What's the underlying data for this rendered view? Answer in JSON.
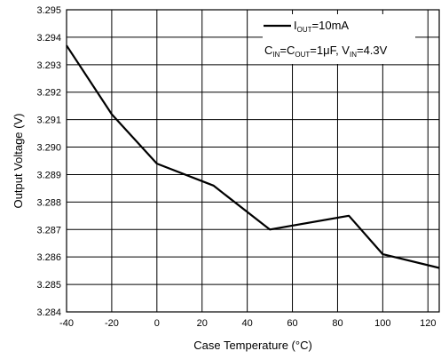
{
  "chart_data": {
    "type": "line",
    "xlabel": "Case Temperature (°C)",
    "ylabel": "Output Voltage (V)",
    "xlim": [
      -40,
      125
    ],
    "ylim": [
      3.284,
      3.295
    ],
    "x_ticks": [
      "-40",
      "-20",
      "0",
      "20",
      "40",
      "60",
      "80",
      "100",
      "120"
    ],
    "y_ticks": [
      "3.284",
      "3.285",
      "3.286",
      "3.287",
      "3.288",
      "3.289",
      "3.290",
      "3.291",
      "3.292",
      "3.293",
      "3.294",
      "3.295"
    ],
    "grid": true,
    "legend_position": "top-right",
    "legend": {
      "line1": {
        "prefix": "I",
        "sub": "OUT",
        "suffix": "=10mA"
      },
      "line2": {
        "c1": "C",
        "c1_sub": "IN",
        "eq1": "=C",
        "c2_sub": "OUT",
        "mid": "=1μF, V",
        "v_sub": "IN",
        "end": "=4.3V"
      }
    },
    "series": [
      {
        "x": [
          -40,
          -20,
          0,
          25,
          50,
          85,
          100,
          125
        ],
        "values": [
          3.2937,
          3.2912,
          3.2894,
          3.2886,
          3.287,
          3.2875,
          3.2861,
          3.2856
        ]
      }
    ],
    "line_color": "#000000"
  }
}
